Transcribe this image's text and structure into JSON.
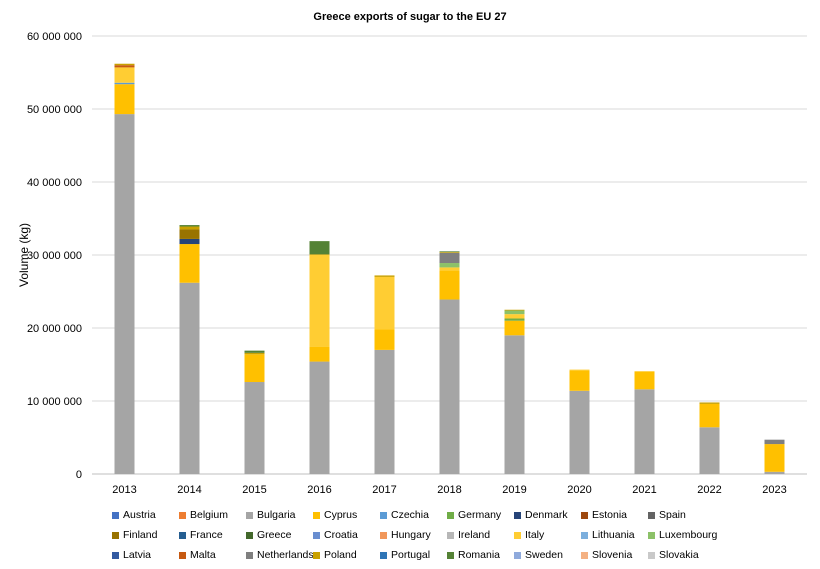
{
  "chart_data": {
    "type": "bar",
    "stacked": true,
    "title": "Greece exports of sugar to the EU 27",
    "xlabel": "",
    "ylabel": "Volume (kg)",
    "ylim": [
      0,
      60000000
    ],
    "yticks": [
      0,
      10000000,
      20000000,
      30000000,
      40000000,
      50000000,
      60000000
    ],
    "ytick_labels": [
      "0",
      "10 000 000",
      "20 000 000",
      "30 000 000",
      "40 000 000",
      "50 000 000",
      "60 000 000"
    ],
    "grid": true,
    "legend_position": "bottom",
    "categories": [
      "2013",
      "2014",
      "2015",
      "2016",
      "2017",
      "2018",
      "2019",
      "2020",
      "2021",
      "2022",
      "2023"
    ],
    "series": [
      {
        "name": "Austria",
        "color": "#4472C4",
        "values": [
          0,
          0,
          0,
          0,
          0,
          0,
          0,
          0,
          0,
          0,
          0
        ]
      },
      {
        "name": "Belgium",
        "color": "#ED7D31",
        "values": [
          0,
          0,
          0,
          0,
          0,
          0,
          0,
          0,
          0,
          0,
          0
        ]
      },
      {
        "name": "Bulgaria",
        "color": "#A5A5A5",
        "values": [
          49300000,
          26200000,
          12600000,
          15400000,
          17000000,
          23900000,
          19000000,
          11400000,
          11600000,
          6400000,
          300000
        ]
      },
      {
        "name": "Cyprus",
        "color": "#FFC000",
        "values": [
          4100000,
          5300000,
          3800000,
          2000000,
          2800000,
          4000000,
          2000000,
          2800000,
          2400000,
          3200000,
          3800000
        ]
      },
      {
        "name": "Czechia",
        "color": "#5B9BD5",
        "values": [
          200000,
          0,
          0,
          0,
          0,
          0,
          0,
          0,
          0,
          0,
          0
        ]
      },
      {
        "name": "Germany",
        "color": "#70AD47",
        "values": [
          0,
          0,
          0,
          0,
          0,
          0,
          300000,
          0,
          0,
          0,
          0
        ]
      },
      {
        "name": "Denmark",
        "color": "#264478",
        "values": [
          0,
          700000,
          0,
          0,
          0,
          0,
          0,
          0,
          0,
          0,
          0
        ]
      },
      {
        "name": "Estonia",
        "color": "#9E480E",
        "values": [
          0,
          0,
          0,
          0,
          0,
          0,
          0,
          0,
          0,
          0,
          0
        ]
      },
      {
        "name": "Spain",
        "color": "#636363",
        "values": [
          0,
          0,
          0,
          0,
          0,
          0,
          0,
          0,
          0,
          0,
          0
        ]
      },
      {
        "name": "Finland",
        "color": "#997300",
        "values": [
          0,
          1300000,
          0,
          0,
          0,
          0,
          0,
          0,
          0,
          0,
          0
        ]
      },
      {
        "name": "France",
        "color": "#255E91",
        "values": [
          0,
          0,
          0,
          0,
          0,
          0,
          0,
          0,
          0,
          0,
          0
        ]
      },
      {
        "name": "Greece",
        "color": "#43682B",
        "values": [
          0,
          0,
          0,
          0,
          0,
          0,
          0,
          0,
          0,
          0,
          0
        ]
      },
      {
        "name": "Croatia",
        "color": "#698ED0",
        "values": [
          0,
          0,
          0,
          0,
          0,
          0,
          0,
          0,
          0,
          0,
          0
        ]
      },
      {
        "name": "Hungary",
        "color": "#F1975A",
        "values": [
          0,
          0,
          0,
          0,
          0,
          0,
          0,
          0,
          0,
          0,
          0
        ]
      },
      {
        "name": "Ireland",
        "color": "#B7B7B7",
        "values": [
          0,
          0,
          0,
          0,
          0,
          0,
          0,
          0,
          0,
          0,
          0
        ]
      },
      {
        "name": "Italy",
        "color": "#FFCD33",
        "values": [
          2100000,
          0,
          0,
          12600000,
          7200000,
          400000,
          600000,
          100000,
          100000,
          0,
          0
        ]
      },
      {
        "name": "Lithuania",
        "color": "#7CAFDD",
        "values": [
          0,
          0,
          0,
          0,
          0,
          0,
          0,
          0,
          0,
          0,
          0
        ]
      },
      {
        "name": "Luxembourg",
        "color": "#8CC168",
        "values": [
          0,
          0,
          0,
          0,
          0,
          600000,
          500000,
          0,
          0,
          0,
          0
        ]
      },
      {
        "name": "Latvia",
        "color": "#335AA1",
        "values": [
          0,
          0,
          0,
          0,
          0,
          0,
          0,
          0,
          0,
          0,
          0
        ]
      },
      {
        "name": "Malta",
        "color": "#C65911",
        "values": [
          300000,
          0,
          0,
          0,
          0,
          0,
          0,
          0,
          0,
          0,
          0
        ]
      },
      {
        "name": "Netherlands",
        "color": "#7F7F7F",
        "values": [
          0,
          0,
          0,
          0,
          0,
          1400000,
          0,
          0,
          0,
          0,
          600000
        ]
      },
      {
        "name": "Poland",
        "color": "#C9A100",
        "values": [
          200000,
          400000,
          200000,
          100000,
          200000,
          100000,
          100000,
          0,
          0,
          200000,
          0
        ]
      },
      {
        "name": "Portugal",
        "color": "#2E75B6",
        "values": [
          0,
          0,
          0,
          0,
          0,
          0,
          0,
          0,
          0,
          0,
          0
        ]
      },
      {
        "name": "Romania",
        "color": "#548235",
        "values": [
          0,
          200000,
          300000,
          1800000,
          0,
          100000,
          0,
          0,
          0,
          0,
          0
        ]
      },
      {
        "name": "Sweden",
        "color": "#8FAADC",
        "values": [
          0,
          0,
          0,
          0,
          0,
          0,
          0,
          0,
          0,
          0,
          0
        ]
      },
      {
        "name": "Slovenia",
        "color": "#F4B183",
        "values": [
          0,
          0,
          0,
          0,
          0,
          0,
          0,
          0,
          0,
          0,
          0
        ]
      },
      {
        "name": "Slovakia",
        "color": "#C9C9C9",
        "values": [
          0,
          0,
          0,
          0,
          0,
          0,
          0,
          0,
          0,
          0,
          0
        ]
      }
    ]
  }
}
